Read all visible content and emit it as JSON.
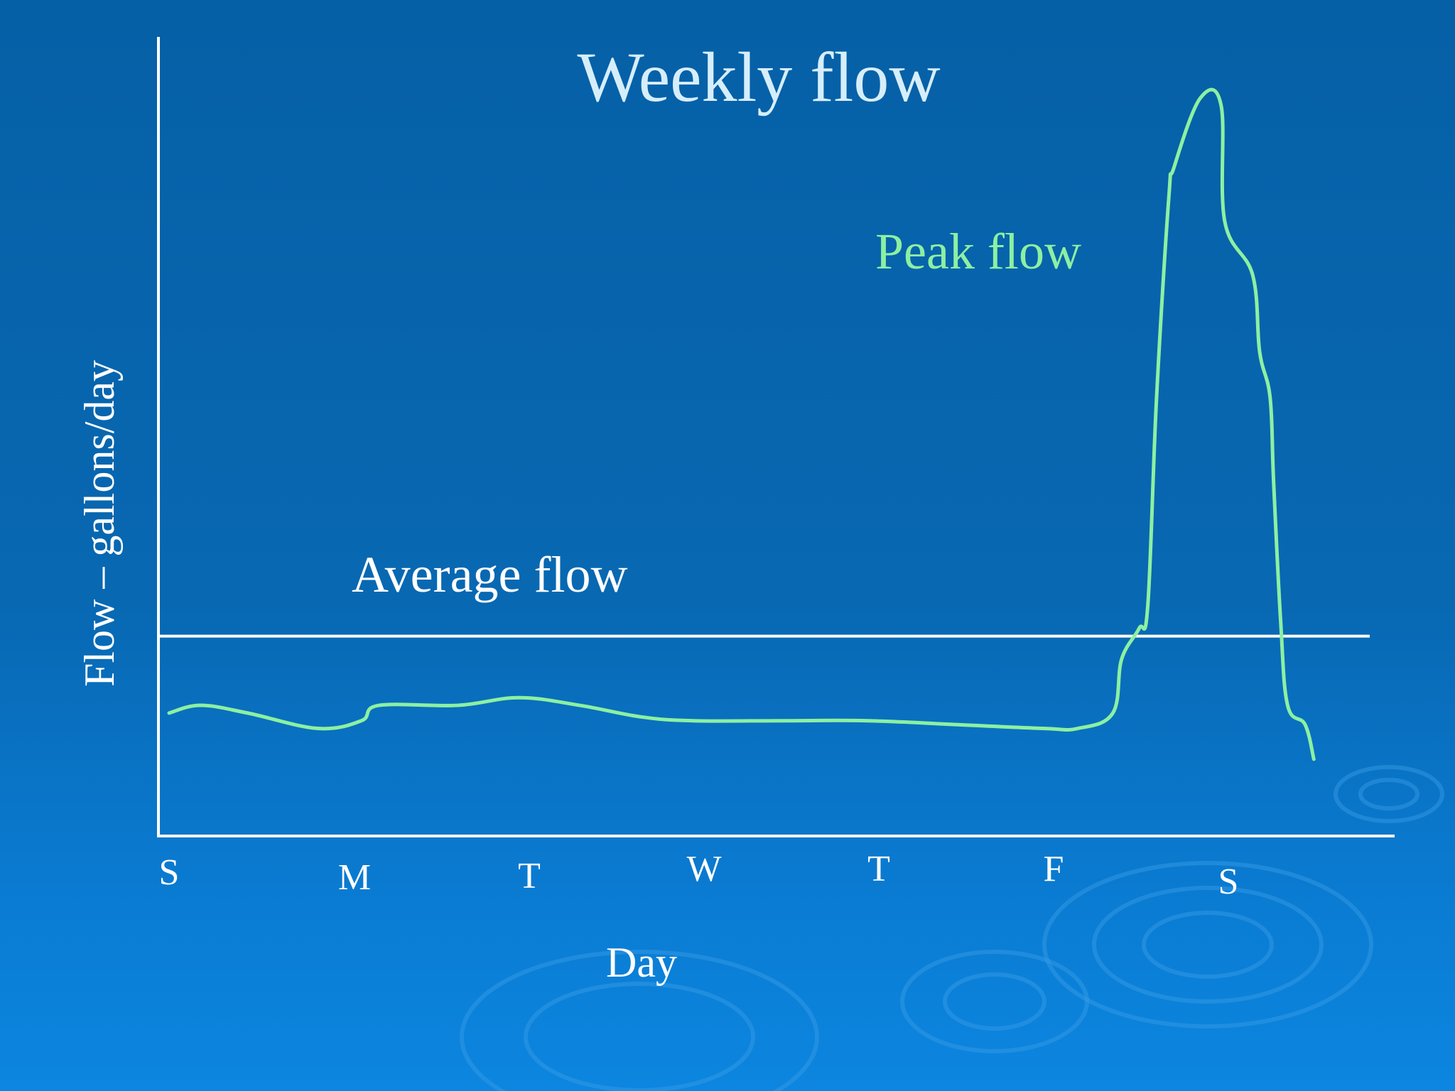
{
  "chart_data": {
    "type": "line",
    "title": "Weekly flow",
    "xlabel": "Day",
    "ylabel": "Flow – gallons/day",
    "categories": [
      "S",
      "M",
      "T",
      "W",
      "T",
      "F",
      "S"
    ],
    "y_tick_labels": false,
    "grid": false,
    "legend": "none",
    "average_line": {
      "label": "Average flow",
      "value": 0.26
    },
    "series": [
      {
        "label": "Peak flow",
        "color": "#8cf0a2",
        "points": [
          [
            0.0,
            0.16
          ],
          [
            0.18,
            0.17
          ],
          [
            0.45,
            0.16
          ],
          [
            0.85,
            0.14
          ],
          [
            1.1,
            0.15
          ],
          [
            1.2,
            0.17
          ],
          [
            1.65,
            0.17
          ],
          [
            2.0,
            0.18
          ],
          [
            2.35,
            0.17
          ],
          [
            2.7,
            0.155
          ],
          [
            3.0,
            0.15
          ],
          [
            3.5,
            0.15
          ],
          [
            4.0,
            0.15
          ],
          [
            4.5,
            0.145
          ],
          [
            5.0,
            0.14
          ],
          [
            5.2,
            0.14
          ],
          [
            5.4,
            0.16
          ],
          [
            5.45,
            0.23
          ],
          [
            5.55,
            0.27
          ],
          [
            5.6,
            0.3
          ],
          [
            5.65,
            0.57
          ],
          [
            5.72,
            0.83
          ],
          [
            5.75,
            0.87
          ],
          [
            5.9,
            0.96
          ],
          [
            6.02,
            0.95
          ],
          [
            6.04,
            0.8
          ],
          [
            6.2,
            0.73
          ],
          [
            6.24,
            0.63
          ],
          [
            6.3,
            0.57
          ],
          [
            6.32,
            0.46
          ],
          [
            6.36,
            0.28
          ],
          [
            6.4,
            0.17
          ],
          [
            6.5,
            0.145
          ],
          [
            6.55,
            0.1
          ]
        ]
      }
    ]
  }
}
